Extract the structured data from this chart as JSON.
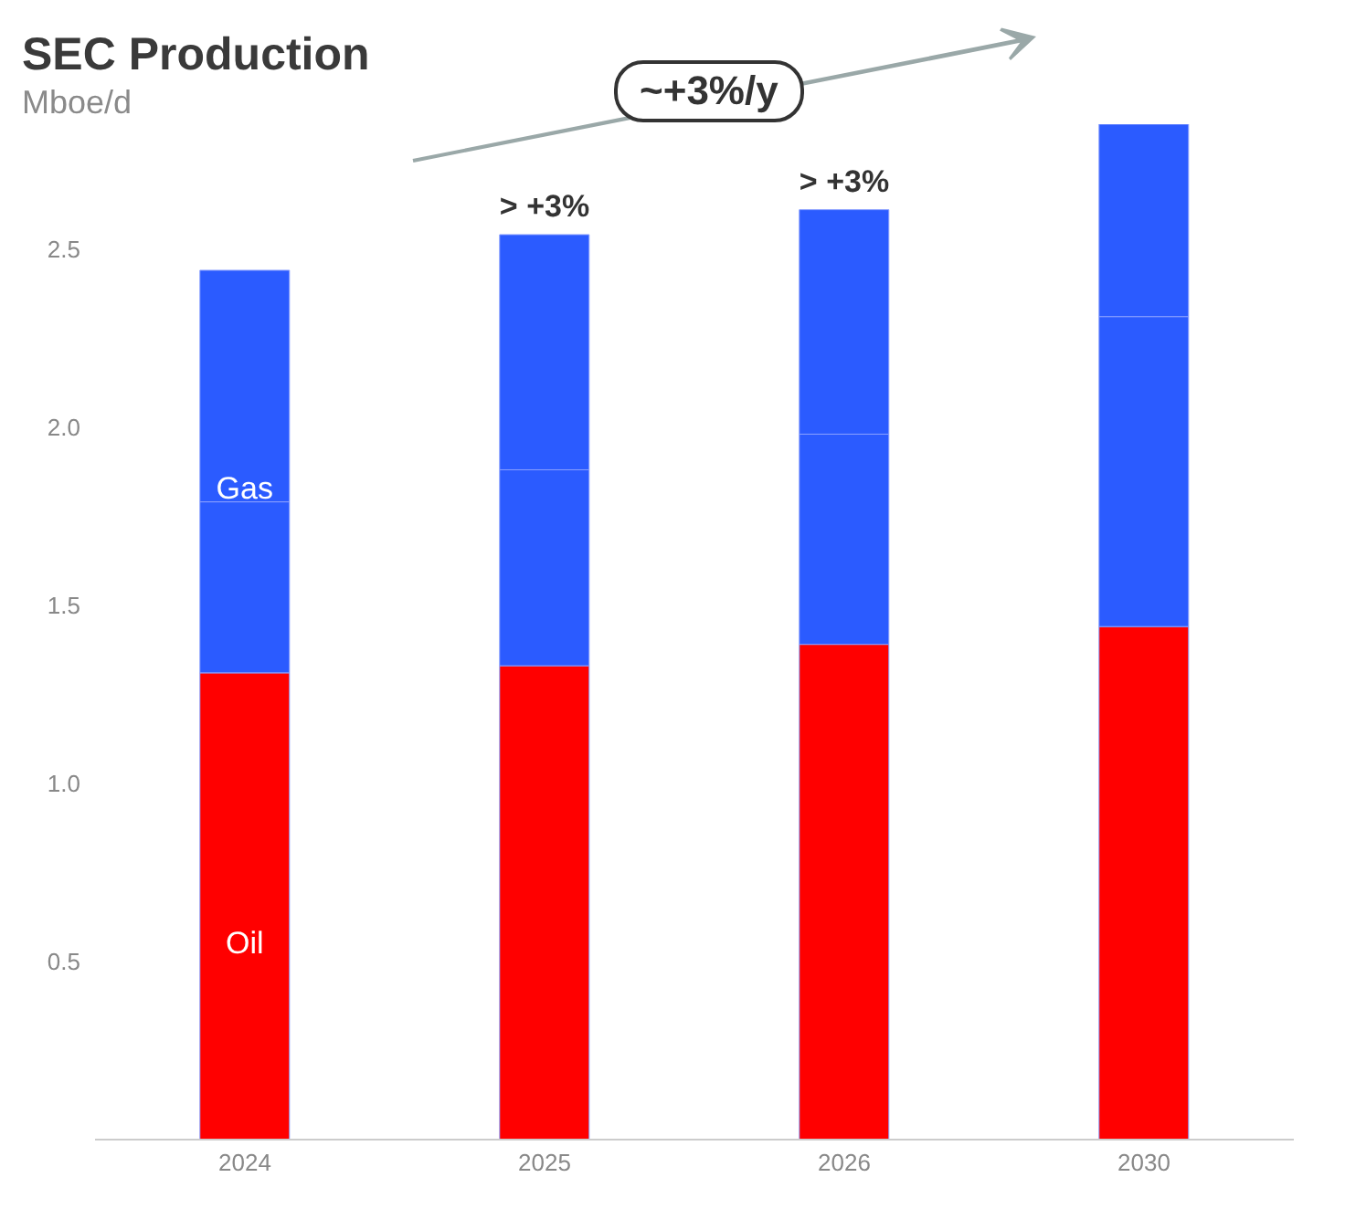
{
  "chart_data": {
    "type": "bar",
    "title": "SEC Production",
    "subtitle": "Mboe/d",
    "categories": [
      "2024",
      "2025",
      "2026",
      "2030"
    ],
    "stacked": true,
    "series": [
      {
        "name": "Oil",
        "color": "#ff0000",
        "values": [
          1.31,
          1.33,
          1.39,
          1.44
        ]
      },
      {
        "color": "#2b5bff",
        "values": [
          0.48,
          0.55,
          0.59,
          0.87
        ]
      },
      {
        "name": "Gas",
        "color": "#2b5bff",
        "values": [
          0.65,
          0.66,
          0.63,
          0.54
        ]
      }
    ],
    "ylim": [
      0,
      2.85
    ],
    "yticks": [
      {
        "value": 0.5,
        "label": "0.5"
      },
      {
        "value": 1,
        "label": "1.0"
      },
      {
        "value": 1.5,
        "label": "1.5"
      },
      {
        "value": 2,
        "label": "2.0"
      },
      {
        "value": 2.5,
        "label": "2.5"
      }
    ],
    "annotations": [
      {
        "text": "> +3%",
        "x": "2025",
        "y": 2.54
      },
      {
        "text": "> +3%",
        "x": "2026",
        "y": 2.61
      },
      "~+3%/y"
    ]
  }
}
